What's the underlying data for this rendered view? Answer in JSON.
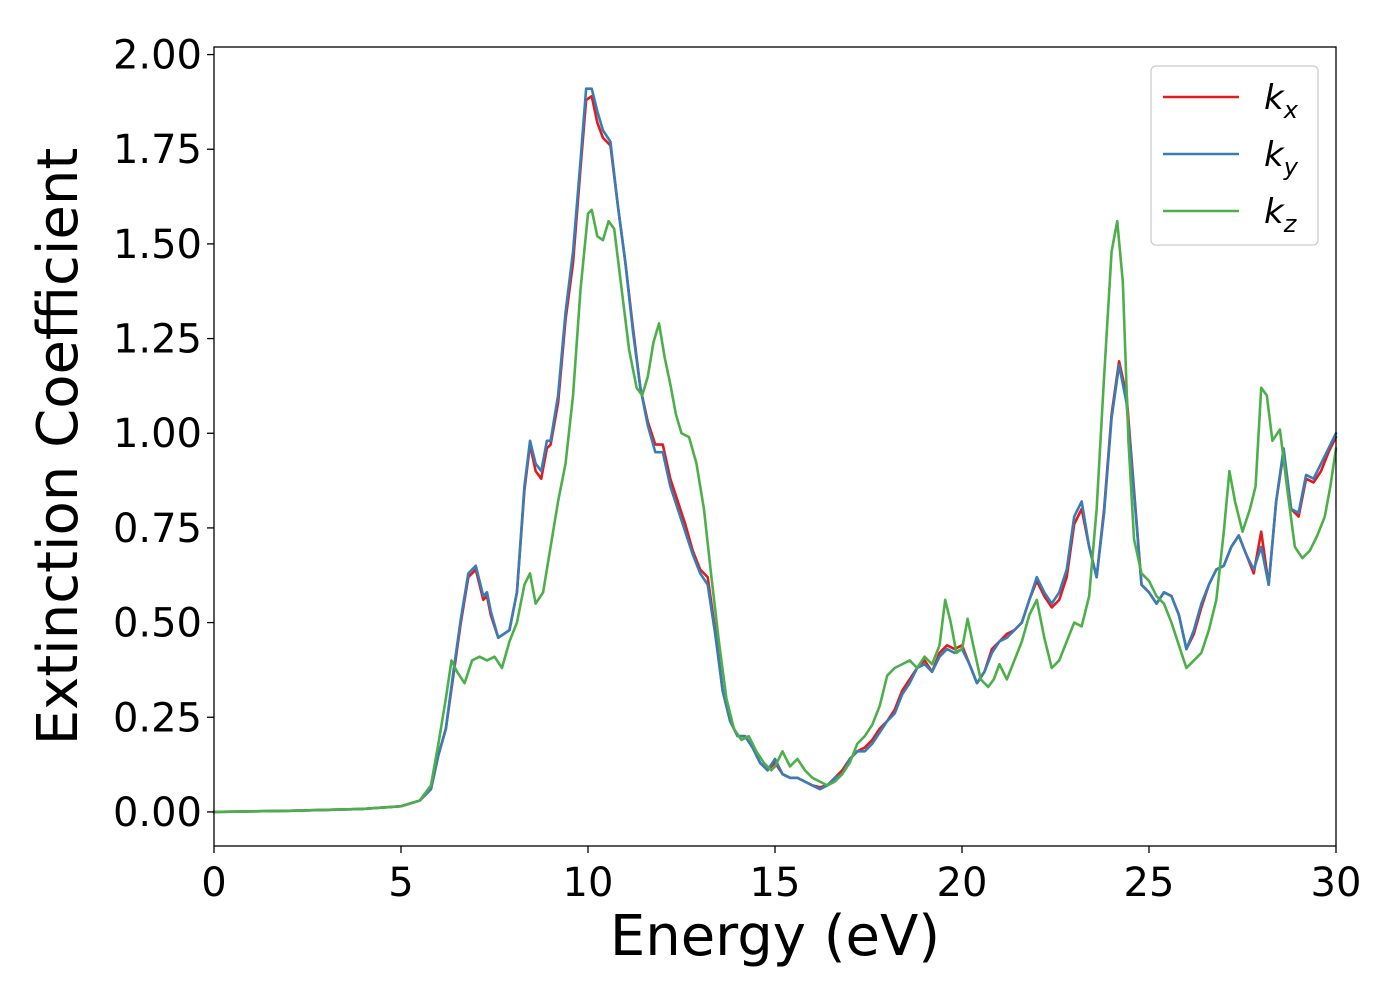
{
  "chart_data": {
    "type": "line",
    "title": "",
    "xlabel": "Energy (eV)",
    "ylabel": "Extinction Coefficient",
    "xlim": [
      0,
      30
    ],
    "ylim": [
      -0.09,
      2.02
    ],
    "xticks": [
      0,
      5,
      10,
      15,
      20,
      25,
      30
    ],
    "xtick_labels": [
      "0",
      "5",
      "10",
      "15",
      "20",
      "25",
      "30"
    ],
    "yticks": [
      0,
      0.25,
      0.5,
      0.75,
      1.0,
      1.25,
      1.5,
      1.75,
      2.0
    ],
    "ytick_labels": [
      "0.00",
      "0.25",
      "0.50",
      "0.75",
      "1.00",
      "1.25",
      "1.50",
      "1.75",
      "2.00"
    ],
    "grid": false,
    "legend_position": "top-right",
    "series": [
      {
        "name": "k",
        "name_subscript": "x",
        "color": "#e41a1c",
        "x": [
          0,
          2,
          4,
          5,
          5.5,
          5.8,
          6.0,
          6.2,
          6.4,
          6.6,
          6.8,
          7.0,
          7.1,
          7.2,
          7.3,
          7.4,
          7.6,
          7.9,
          8.1,
          8.3,
          8.45,
          8.6,
          8.75,
          8.9,
          9.0,
          9.2,
          9.4,
          9.6,
          9.8,
          9.95,
          10.1,
          10.25,
          10.4,
          10.6,
          10.8,
          11.0,
          11.2,
          11.4,
          11.6,
          11.8,
          12.0,
          12.2,
          12.4,
          12.6,
          12.8,
          13.0,
          13.2,
          13.4,
          13.6,
          13.8,
          14.0,
          14.2,
          14.4,
          14.6,
          14.8,
          15.0,
          15.2,
          15.4,
          15.6,
          15.8,
          16.0,
          16.2,
          16.4,
          16.6,
          16.8,
          17.0,
          17.2,
          17.4,
          17.6,
          17.8,
          18.0,
          18.2,
          18.4,
          18.6,
          18.8,
          19.0,
          19.2,
          19.4,
          19.6,
          19.8,
          20.0,
          20.2,
          20.4,
          20.6,
          20.8,
          21.0,
          21.2,
          21.4,
          21.6,
          21.8,
          22.0,
          22.2,
          22.4,
          22.6,
          22.8,
          23.0,
          23.2,
          23.4,
          23.6,
          23.8,
          24.0,
          24.2,
          24.4,
          24.6,
          24.8,
          25.0,
          25.2,
          25.4,
          25.6,
          25.8,
          26.0,
          26.2,
          26.4,
          26.6,
          26.8,
          27.0,
          27.2,
          27.4,
          27.6,
          27.8,
          28.0,
          28.2,
          28.4,
          28.6,
          28.8,
          29.0,
          29.2,
          29.4,
          29.6,
          29.8,
          30.0
        ],
        "y": [
          0.0,
          0.003,
          0.008,
          0.015,
          0.03,
          0.06,
          0.15,
          0.22,
          0.36,
          0.5,
          0.62,
          0.64,
          0.6,
          0.56,
          0.57,
          0.52,
          0.46,
          0.48,
          0.58,
          0.85,
          0.97,
          0.9,
          0.88,
          0.96,
          0.97,
          1.08,
          1.3,
          1.45,
          1.7,
          1.88,
          1.89,
          1.82,
          1.78,
          1.76,
          1.6,
          1.45,
          1.28,
          1.12,
          1.03,
          0.97,
          0.97,
          0.88,
          0.82,
          0.76,
          0.69,
          0.64,
          0.62,
          0.48,
          0.32,
          0.24,
          0.2,
          0.2,
          0.17,
          0.13,
          0.11,
          0.13,
          0.1,
          0.09,
          0.09,
          0.08,
          0.07,
          0.065,
          0.07,
          0.09,
          0.11,
          0.14,
          0.16,
          0.17,
          0.19,
          0.22,
          0.24,
          0.27,
          0.32,
          0.35,
          0.38,
          0.4,
          0.37,
          0.42,
          0.44,
          0.43,
          0.44,
          0.39,
          0.34,
          0.37,
          0.43,
          0.45,
          0.47,
          0.48,
          0.5,
          0.56,
          0.61,
          0.57,
          0.54,
          0.56,
          0.62,
          0.76,
          0.8,
          0.7,
          0.62,
          0.8,
          1.05,
          1.19,
          1.1,
          0.85,
          0.6,
          0.58,
          0.55,
          0.58,
          0.57,
          0.52,
          0.43,
          0.47,
          0.54,
          0.6,
          0.64,
          0.65,
          0.7,
          0.73,
          0.68,
          0.63,
          0.74,
          0.6,
          0.82,
          0.95,
          0.8,
          0.78,
          0.88,
          0.87,
          0.9,
          0.95,
          0.99
        ]
      },
      {
        "name": "k",
        "name_subscript": "y",
        "color": "#377eb8",
        "x": [
          0,
          2,
          4,
          5,
          5.5,
          5.8,
          6.0,
          6.2,
          6.4,
          6.6,
          6.8,
          7.0,
          7.1,
          7.2,
          7.3,
          7.4,
          7.6,
          7.9,
          8.1,
          8.3,
          8.45,
          8.6,
          8.75,
          8.9,
          9.0,
          9.2,
          9.4,
          9.6,
          9.8,
          9.95,
          10.1,
          10.25,
          10.4,
          10.6,
          10.8,
          11.0,
          11.2,
          11.4,
          11.6,
          11.8,
          12.0,
          12.2,
          12.4,
          12.6,
          12.8,
          13.0,
          13.2,
          13.4,
          13.6,
          13.8,
          14.0,
          14.2,
          14.4,
          14.6,
          14.8,
          15.0,
          15.2,
          15.4,
          15.6,
          15.8,
          16.0,
          16.2,
          16.4,
          16.6,
          16.8,
          17.0,
          17.2,
          17.4,
          17.6,
          17.8,
          18.0,
          18.2,
          18.4,
          18.6,
          18.8,
          19.0,
          19.2,
          19.4,
          19.6,
          19.8,
          20.0,
          20.2,
          20.4,
          20.6,
          20.8,
          21.0,
          21.2,
          21.4,
          21.6,
          21.8,
          22.0,
          22.2,
          22.4,
          22.6,
          22.8,
          23.0,
          23.2,
          23.4,
          23.6,
          23.8,
          24.0,
          24.2,
          24.4,
          24.6,
          24.8,
          25.0,
          25.2,
          25.4,
          25.6,
          25.8,
          26.0,
          26.2,
          26.4,
          26.6,
          26.8,
          27.0,
          27.2,
          27.4,
          27.6,
          27.8,
          28.0,
          28.2,
          28.4,
          28.6,
          28.8,
          29.0,
          29.2,
          29.4,
          29.6,
          29.8,
          30.0
        ],
        "y": [
          0.0,
          0.003,
          0.008,
          0.015,
          0.03,
          0.06,
          0.15,
          0.22,
          0.37,
          0.51,
          0.63,
          0.65,
          0.61,
          0.57,
          0.58,
          0.53,
          0.46,
          0.48,
          0.58,
          0.86,
          0.98,
          0.92,
          0.9,
          0.98,
          0.98,
          1.1,
          1.32,
          1.48,
          1.72,
          1.91,
          1.91,
          1.85,
          1.8,
          1.77,
          1.6,
          1.45,
          1.27,
          1.12,
          1.02,
          0.95,
          0.95,
          0.86,
          0.8,
          0.74,
          0.68,
          0.63,
          0.6,
          0.47,
          0.32,
          0.24,
          0.2,
          0.2,
          0.17,
          0.13,
          0.11,
          0.14,
          0.1,
          0.09,
          0.09,
          0.08,
          0.07,
          0.06,
          0.07,
          0.09,
          0.1,
          0.14,
          0.16,
          0.16,
          0.18,
          0.21,
          0.24,
          0.26,
          0.31,
          0.34,
          0.38,
          0.39,
          0.37,
          0.41,
          0.43,
          0.42,
          0.43,
          0.39,
          0.34,
          0.37,
          0.42,
          0.45,
          0.46,
          0.48,
          0.5,
          0.56,
          0.62,
          0.58,
          0.55,
          0.58,
          0.64,
          0.78,
          0.82,
          0.7,
          0.62,
          0.79,
          1.04,
          1.18,
          1.08,
          0.84,
          0.6,
          0.58,
          0.55,
          0.58,
          0.57,
          0.52,
          0.43,
          0.48,
          0.55,
          0.6,
          0.64,
          0.65,
          0.7,
          0.73,
          0.68,
          0.64,
          0.7,
          0.6,
          0.82,
          0.96,
          0.8,
          0.79,
          0.89,
          0.88,
          0.92,
          0.96,
          1.0
        ]
      },
      {
        "name": "k",
        "name_subscript": "z",
        "color": "#4daf4a",
        "x": [
          0,
          2,
          4,
          5,
          5.5,
          5.8,
          6.0,
          6.2,
          6.35,
          6.5,
          6.7,
          6.9,
          7.1,
          7.3,
          7.5,
          7.7,
          7.9,
          8.1,
          8.3,
          8.45,
          8.6,
          8.8,
          9.0,
          9.2,
          9.4,
          9.6,
          9.8,
          10.0,
          10.1,
          10.25,
          10.4,
          10.55,
          10.7,
          10.9,
          11.1,
          11.3,
          11.45,
          11.6,
          11.75,
          11.9,
          12.05,
          12.2,
          12.35,
          12.5,
          12.7,
          12.9,
          13.1,
          13.3,
          13.5,
          13.7,
          13.9,
          14.1,
          14.3,
          14.5,
          14.7,
          14.9,
          15.0,
          15.2,
          15.4,
          15.6,
          15.8,
          16.0,
          16.2,
          16.4,
          16.6,
          16.8,
          17.0,
          17.2,
          17.4,
          17.6,
          17.8,
          18.0,
          18.2,
          18.4,
          18.6,
          18.8,
          19.0,
          19.2,
          19.4,
          19.55,
          19.7,
          19.85,
          20.0,
          20.15,
          20.3,
          20.5,
          20.7,
          20.85,
          21.0,
          21.2,
          21.4,
          21.6,
          21.8,
          22.0,
          22.2,
          22.4,
          22.6,
          22.8,
          23.0,
          23.2,
          23.4,
          23.6,
          23.8,
          24.0,
          24.15,
          24.3,
          24.45,
          24.6,
          24.8,
          25.0,
          25.2,
          25.4,
          25.6,
          25.8,
          26.0,
          26.2,
          26.4,
          26.6,
          26.8,
          27.0,
          27.15,
          27.3,
          27.5,
          27.7,
          27.85,
          28.0,
          28.15,
          28.3,
          28.5,
          28.7,
          28.9,
          29.1,
          29.3,
          29.5,
          29.7,
          29.85,
          30.0
        ],
        "y": [
          0.0,
          0.003,
          0.008,
          0.015,
          0.03,
          0.07,
          0.18,
          0.3,
          0.4,
          0.37,
          0.34,
          0.4,
          0.41,
          0.4,
          0.41,
          0.38,
          0.45,
          0.5,
          0.6,
          0.63,
          0.55,
          0.58,
          0.7,
          0.82,
          0.92,
          1.1,
          1.38,
          1.58,
          1.59,
          1.52,
          1.51,
          1.56,
          1.54,
          1.38,
          1.22,
          1.12,
          1.1,
          1.15,
          1.24,
          1.29,
          1.2,
          1.13,
          1.05,
          1.0,
          0.99,
          0.92,
          0.8,
          0.62,
          0.45,
          0.3,
          0.22,
          0.19,
          0.2,
          0.16,
          0.13,
          0.11,
          0.12,
          0.16,
          0.12,
          0.14,
          0.11,
          0.09,
          0.08,
          0.07,
          0.08,
          0.1,
          0.13,
          0.18,
          0.2,
          0.23,
          0.28,
          0.36,
          0.38,
          0.39,
          0.4,
          0.38,
          0.41,
          0.39,
          0.44,
          0.56,
          0.5,
          0.42,
          0.43,
          0.51,
          0.44,
          0.35,
          0.33,
          0.35,
          0.39,
          0.35,
          0.4,
          0.45,
          0.52,
          0.56,
          0.46,
          0.38,
          0.4,
          0.45,
          0.5,
          0.49,
          0.57,
          0.8,
          1.15,
          1.48,
          1.56,
          1.4,
          0.98,
          0.72,
          0.63,
          0.61,
          0.57,
          0.55,
          0.5,
          0.44,
          0.38,
          0.4,
          0.42,
          0.48,
          0.56,
          0.74,
          0.9,
          0.82,
          0.74,
          0.8,
          0.86,
          1.12,
          1.1,
          0.98,
          1.01,
          0.85,
          0.7,
          0.67,
          0.69,
          0.73,
          0.78,
          0.86,
          0.96
        ]
      }
    ]
  }
}
